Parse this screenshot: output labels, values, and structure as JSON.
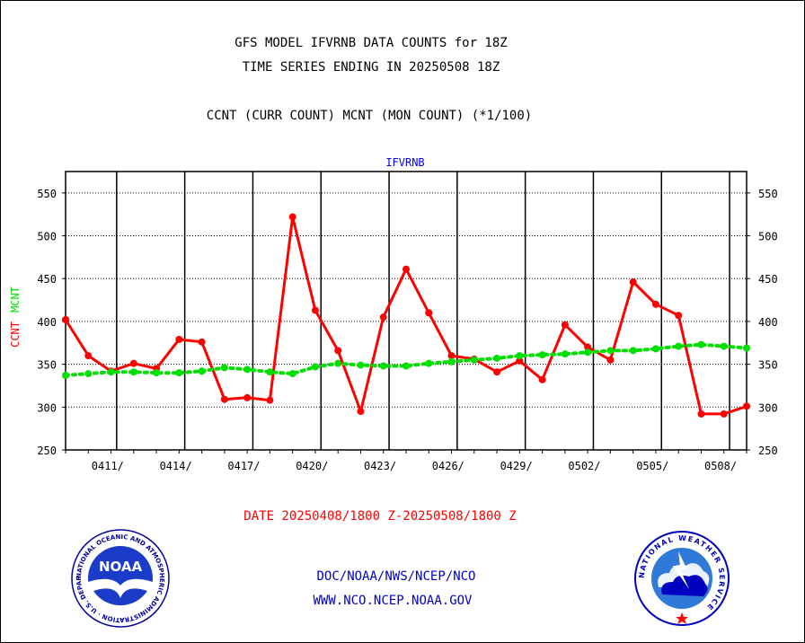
{
  "titles": {
    "line1": "GFS MODEL IFVRNB DATA COUNTS for 18Z",
    "line2": "TIME SERIES ENDING IN 20250508 18Z",
    "line3": "CCNT (CURR COUNT) MCNT (MON COUNT) (*1/100)"
  },
  "footer": {
    "date_range": "DATE 20250408/1800 Z-20250508/1800 Z",
    "org_path": "DOC/NOAA/NWS/NCEP/NCO",
    "website": "WWW.NCO.NCEP.NOAA.GOV"
  },
  "logos": {
    "noaa_text": "NOAA",
    "noaa_ring": "NATIONAL OCEANIC AND ATMOSPHERIC ADMINISTRATION · U.S. DEPARTMENT OF COMMERCE",
    "nws_ring": "NATIONAL WEATHER SERVICE"
  },
  "colors": {
    "ccnt": "#ff0000",
    "mcnt": "#00e000",
    "plot_title": "#0000ff",
    "footer_blue": "#0000c0"
  },
  "chart_data": {
    "type": "line",
    "title": "IFVRNB",
    "ylabel_parts": [
      {
        "text": "CCNT",
        "color": "#ff0000"
      },
      {
        "text": "MCNT",
        "color": "#00e000"
      }
    ],
    "ylim": [
      250,
      575
    ],
    "yticks": [
      250,
      300,
      350,
      400,
      450,
      500,
      550
    ],
    "grid": true,
    "x": [
      "0408/18",
      "0409/18",
      "0410/18",
      "0411/18",
      "0412/18",
      "0413/18",
      "0414/18",
      "0415/18",
      "0416/18",
      "0417/18",
      "0418/18",
      "0419/18",
      "0420/18",
      "0421/18",
      "0422/18",
      "0423/18",
      "0424/18",
      "0425/18",
      "0426/18",
      "0427/18",
      "0428/18",
      "0429/18",
      "0430/18",
      "0501/18",
      "0502/18",
      "0503/18",
      "0504/18",
      "0505/18",
      "0506/18",
      "0507/18",
      "0508/18"
    ],
    "xticks": [
      {
        "label": "0411/",
        "index": 2.25
      },
      {
        "label": "0414/",
        "index": 5.25
      },
      {
        "label": "0417/",
        "index": 8.25
      },
      {
        "label": "0420/",
        "index": 11.25
      },
      {
        "label": "0423/",
        "index": 14.25
      },
      {
        "label": "0426/",
        "index": 17.25
      },
      {
        "label": "0429/",
        "index": 20.25
      },
      {
        "label": "0502/",
        "index": 23.25
      },
      {
        "label": "0505/",
        "index": 26.25
      },
      {
        "label": "0508/",
        "index": 29.25
      }
    ],
    "series": [
      {
        "name": "CCNT",
        "color": "#ff0000",
        "style": "solid",
        "values": [
          402,
          360,
          342,
          351,
          345,
          379,
          376,
          309,
          311,
          308,
          522,
          413,
          366,
          295,
          405,
          461,
          410,
          360,
          356,
          341,
          354,
          332,
          396,
          370,
          355,
          446,
          420,
          407,
          292,
          292,
          301
        ]
      },
      {
        "name": "MCNT",
        "color": "#00e000",
        "style": "dotted",
        "values": [
          337,
          339,
          341,
          341,
          340,
          340,
          342,
          346,
          344,
          341,
          339,
          347,
          351,
          349,
          348,
          348,
          351,
          353,
          355,
          357,
          360,
          361,
          362,
          364,
          366,
          366,
          368,
          371,
          373,
          371,
          369
        ]
      }
    ]
  }
}
